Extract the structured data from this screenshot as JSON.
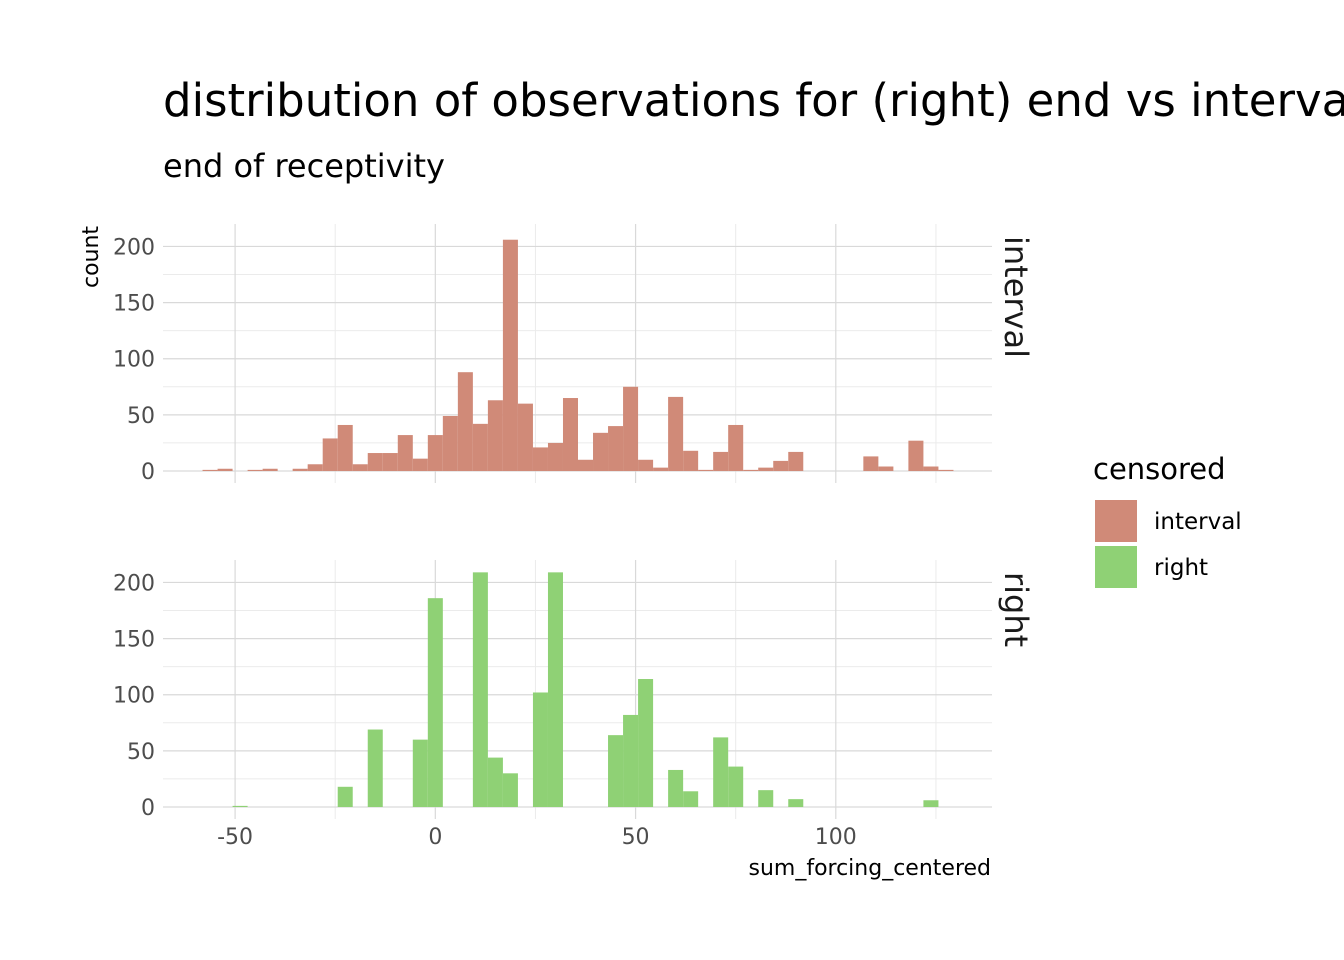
{
  "chart_data": {
    "type": "bar",
    "subtype": "faceted-histogram",
    "title": "distribution of observations for (right) end vs interval censored data",
    "subtitle": "end of receptivity",
    "xlabel": "sum_forcing_centered",
    "ylabel": "count",
    "xlim": [
      -68,
      139
    ],
    "ylim": [
      0,
      220
    ],
    "x_ticks": [
      -50,
      0,
      50,
      100
    ],
    "y_ticks": [
      0,
      50,
      100,
      150,
      200
    ],
    "grid": true,
    "bin_width": 3.75,
    "bin_start": -60,
    "legend": {
      "title": "censored",
      "position": "right",
      "items": [
        {
          "label": "interval",
          "color": "#D08A78"
        },
        {
          "label": "right",
          "color": "#8FD175"
        }
      ]
    },
    "facets": [
      {
        "strip": "interval",
        "color": "#D08A78",
        "bins": [
          {
            "x": -56.25,
            "y": 1
          },
          {
            "x": -52.5,
            "y": 2
          },
          {
            "x": -45,
            "y": 1
          },
          {
            "x": -41.25,
            "y": 2
          },
          {
            "x": -33.75,
            "y": 2
          },
          {
            "x": -30,
            "y": 6
          },
          {
            "x": -26.25,
            "y": 29
          },
          {
            "x": -22.5,
            "y": 41
          },
          {
            "x": -18.75,
            "y": 6
          },
          {
            "x": -15,
            "y": 16
          },
          {
            "x": -11.25,
            "y": 16
          },
          {
            "x": -7.5,
            "y": 32
          },
          {
            "x": -3.75,
            "y": 11
          },
          {
            "x": 0,
            "y": 32
          },
          {
            "x": 3.75,
            "y": 49
          },
          {
            "x": 7.5,
            "y": 88
          },
          {
            "x": 11.25,
            "y": 42
          },
          {
            "x": 15,
            "y": 63
          },
          {
            "x": 18.75,
            "y": 206
          },
          {
            "x": 22.5,
            "y": 60
          },
          {
            "x": 26.25,
            "y": 21
          },
          {
            "x": 30,
            "y": 25
          },
          {
            "x": 33.75,
            "y": 65
          },
          {
            "x": 37.5,
            "y": 10
          },
          {
            "x": 41.25,
            "y": 34
          },
          {
            "x": 45,
            "y": 40
          },
          {
            "x": 48.75,
            "y": 75
          },
          {
            "x": 52.5,
            "y": 10
          },
          {
            "x": 56.25,
            "y": 3
          },
          {
            "x": 60,
            "y": 66
          },
          {
            "x": 63.75,
            "y": 18
          },
          {
            "x": 67.5,
            "y": 1
          },
          {
            "x": 71.25,
            "y": 17
          },
          {
            "x": 75,
            "y": 41
          },
          {
            "x": 78.75,
            "y": 1
          },
          {
            "x": 82.5,
            "y": 3
          },
          {
            "x": 86.25,
            "y": 9
          },
          {
            "x": 90,
            "y": 17
          },
          {
            "x": 108.75,
            "y": 13
          },
          {
            "x": 112.5,
            "y": 4
          },
          {
            "x": 120,
            "y": 27
          },
          {
            "x": 123.75,
            "y": 4
          },
          {
            "x": 127.5,
            "y": 1
          }
        ]
      },
      {
        "strip": "right",
        "color": "#8FD175",
        "bins": [
          {
            "x": -48.75,
            "y": 1
          },
          {
            "x": -22.5,
            "y": 18
          },
          {
            "x": -15,
            "y": 69
          },
          {
            "x": -3.75,
            "y": 60
          },
          {
            "x": 0,
            "y": 186
          },
          {
            "x": 11.25,
            "y": 209
          },
          {
            "x": 15,
            "y": 44
          },
          {
            "x": 18.75,
            "y": 30
          },
          {
            "x": 26.25,
            "y": 102
          },
          {
            "x": 30,
            "y": 209
          },
          {
            "x": 45,
            "y": 64
          },
          {
            "x": 48.75,
            "y": 82
          },
          {
            "x": 52.5,
            "y": 114
          },
          {
            "x": 60,
            "y": 33
          },
          {
            "x": 63.75,
            "y": 14
          },
          {
            "x": 71.25,
            "y": 62
          },
          {
            "x": 75,
            "y": 36
          },
          {
            "x": 82.5,
            "y": 15
          },
          {
            "x": 90,
            "y": 7
          },
          {
            "x": 123.75,
            "y": 6
          }
        ]
      }
    ]
  }
}
